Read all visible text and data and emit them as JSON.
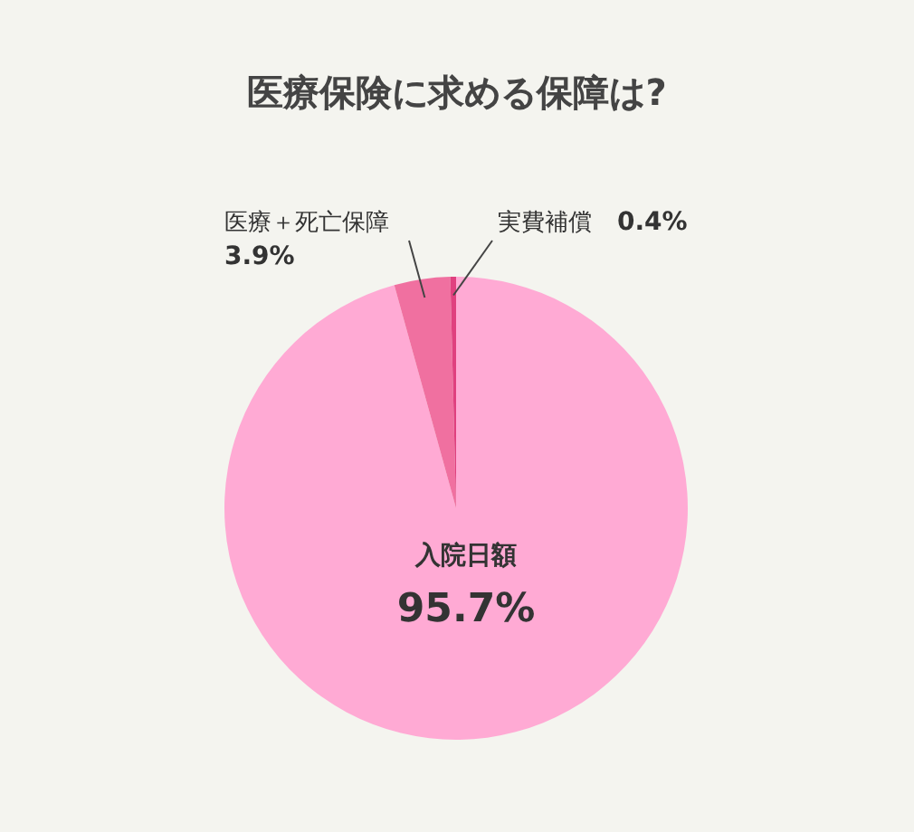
{
  "chart_data": {
    "type": "pie",
    "title": "医療保険に求める保障は?",
    "categories": [
      "入院日額",
      "医療＋死亡保障",
      "実費補償"
    ],
    "values": [
      95.7,
      3.9,
      0.4
    ],
    "colors": [
      "#ffaad4",
      "#f070a0",
      "#e0407f"
    ],
    "value_labels": [
      "95.7%",
      "3.9%",
      "0.4%"
    ]
  }
}
